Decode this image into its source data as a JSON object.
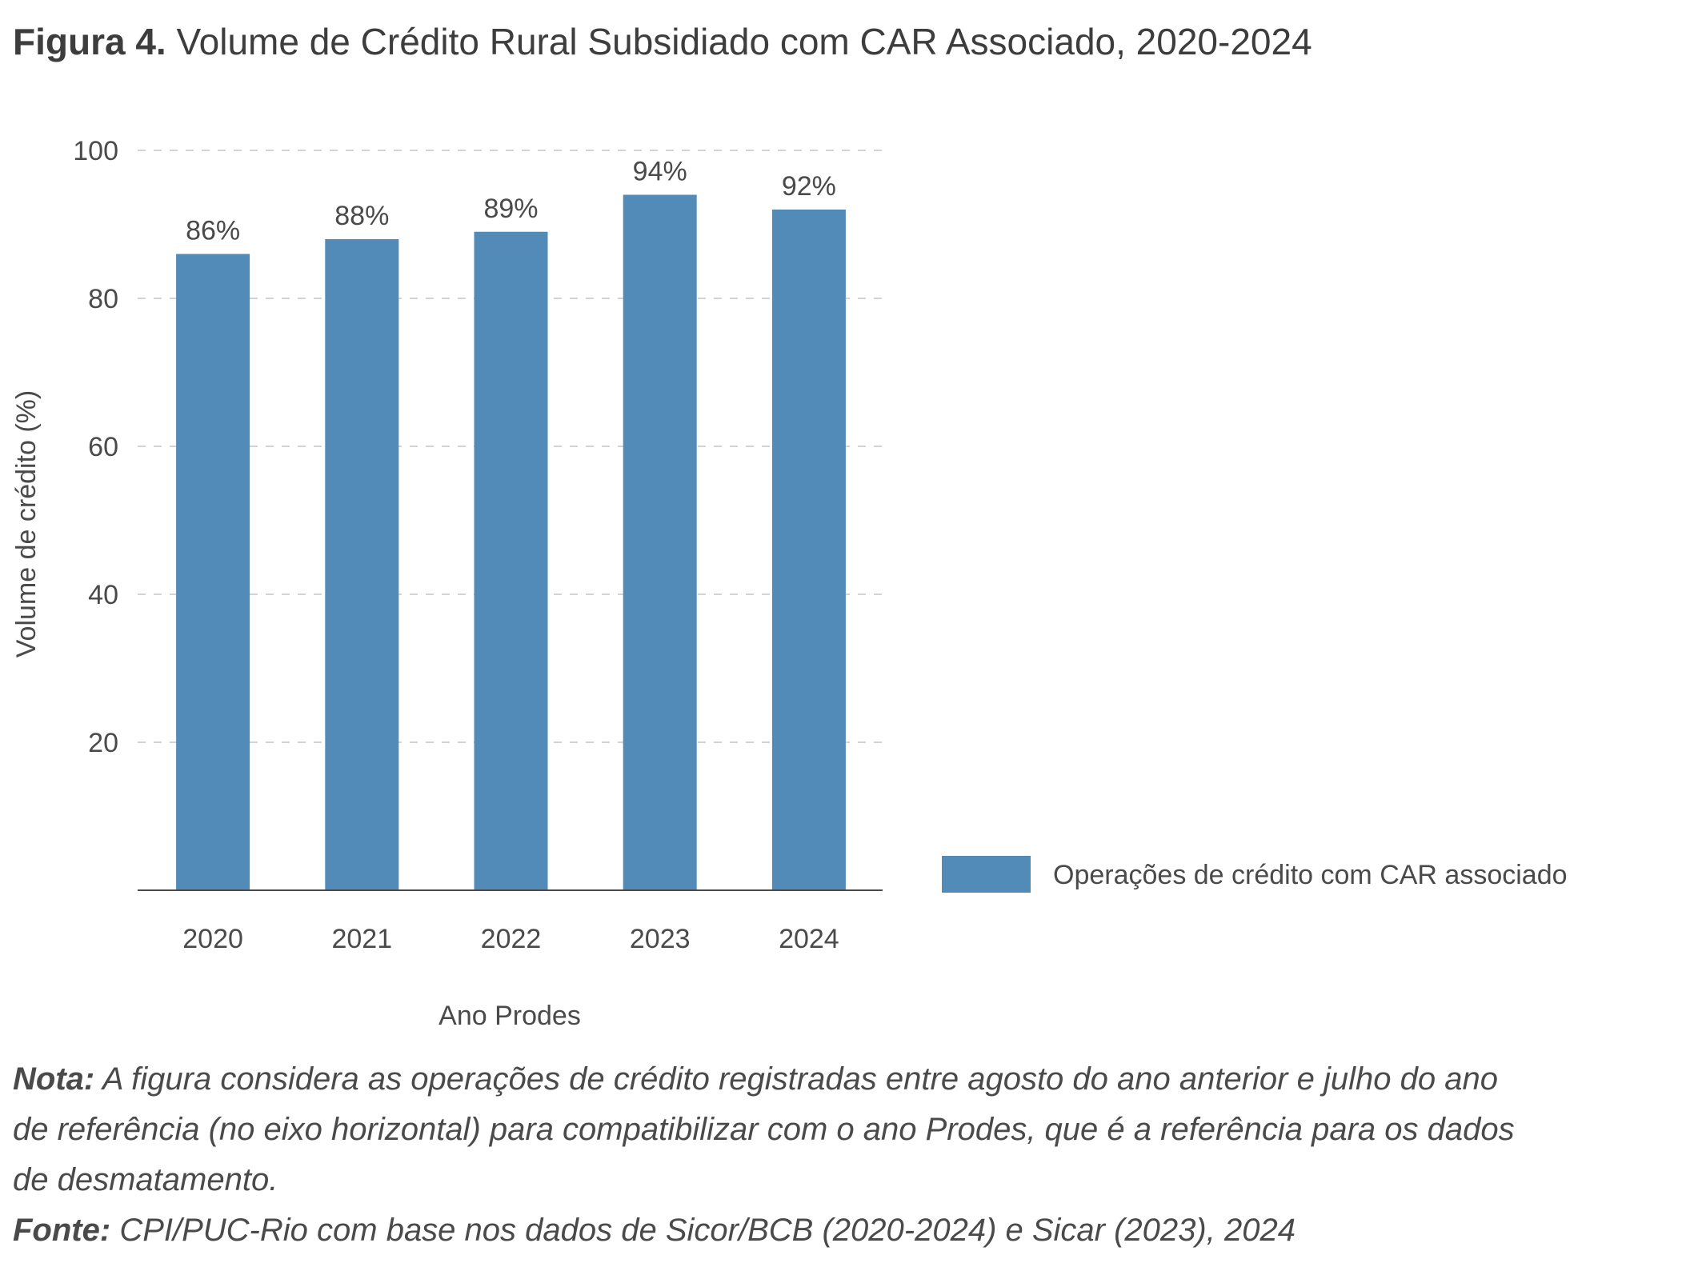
{
  "figure": {
    "lead": "Figura 4.",
    "title": "Volume de Crédito Rural Subsidiado com CAR Associado, 2020-2024"
  },
  "chart_data": {
    "type": "bar",
    "categories": [
      "2020",
      "2021",
      "2022",
      "2023",
      "2024"
    ],
    "series": [
      {
        "name": "Operações de crédito com CAR associado",
        "values": [
          86,
          88,
          89,
          94,
          92
        ],
        "labels": [
          "86%",
          "88%",
          "89%",
          "94%",
          "92%"
        ],
        "color": "#528bb8"
      }
    ],
    "xlabel": "Ano Prodes",
    "ylabel": "Volume de crédito (%)",
    "ylim": [
      0,
      100
    ],
    "yticks": [
      "20",
      "40",
      "60",
      "80",
      "100"
    ],
    "ytick_values": [
      20,
      40,
      60,
      80,
      100
    ],
    "grid": "horizontal dashed",
    "legend_position": "right"
  },
  "notes": {
    "note_lead": "Nota:",
    "note_text": "A figura considera as operações de crédito registradas entre agosto do ano anterior e julho do ano de referência (no eixo horizontal) para compatibilizar com o ano Prodes, que é a referência para os dados de desmatamento.",
    "source_lead": "Fonte:",
    "source_text": "CPI/PUC-Rio com base nos dados de Sicor/BCB (2020-2024) e Sicar (2023), 2024"
  }
}
